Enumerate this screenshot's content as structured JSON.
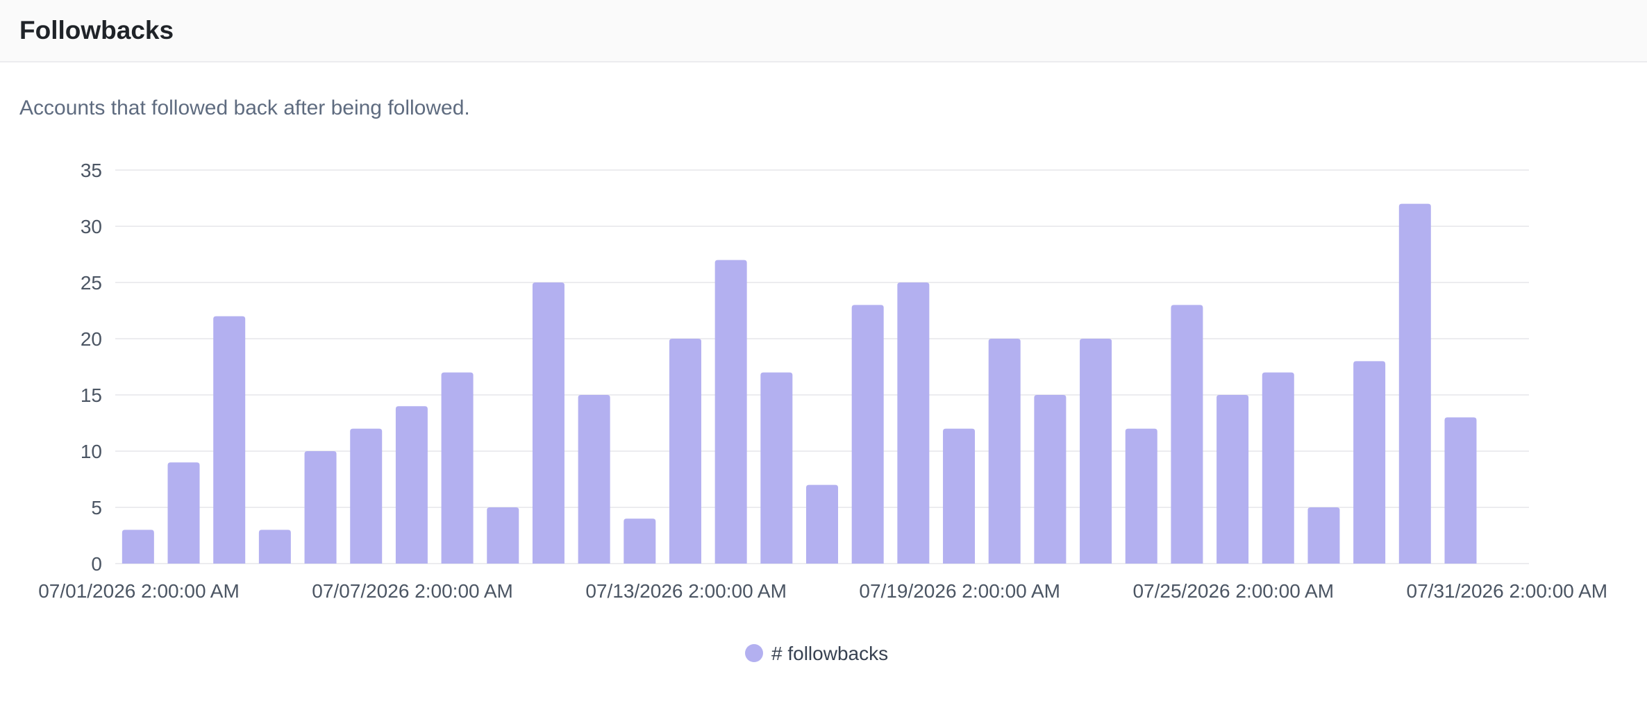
{
  "card": {
    "title": "Followbacks",
    "description": "Accounts that followed back after being followed."
  },
  "chart_data": {
    "type": "bar",
    "categories": [
      "07/01/2026 2:00:00 AM",
      "07/02/2026 2:00:00 AM",
      "07/03/2026 2:00:00 AM",
      "07/04/2026 2:00:00 AM",
      "07/05/2026 2:00:00 AM",
      "07/06/2026 2:00:00 AM",
      "07/07/2026 2:00:00 AM",
      "07/08/2026 2:00:00 AM",
      "07/09/2026 2:00:00 AM",
      "07/10/2026 2:00:00 AM",
      "07/11/2026 2:00:00 AM",
      "07/12/2026 2:00:00 AM",
      "07/13/2026 2:00:00 AM",
      "07/14/2026 2:00:00 AM",
      "07/15/2026 2:00:00 AM",
      "07/16/2026 2:00:00 AM",
      "07/17/2026 2:00:00 AM",
      "07/18/2026 2:00:00 AM",
      "07/19/2026 2:00:00 AM",
      "07/20/2026 2:00:00 AM",
      "07/21/2026 2:00:00 AM",
      "07/22/2026 2:00:00 AM",
      "07/23/2026 2:00:00 AM",
      "07/24/2026 2:00:00 AM",
      "07/25/2026 2:00:00 AM",
      "07/26/2026 2:00:00 AM",
      "07/27/2026 2:00:00 AM",
      "07/28/2026 2:00:00 AM",
      "07/29/2026 2:00:00 AM",
      "07/30/2026 2:00:00 AM",
      "07/31/2026 2:00:00 AM"
    ],
    "series": [
      {
        "name": "# followbacks",
        "color": "#b3b0f0",
        "values": [
          3,
          9,
          22,
          3,
          10,
          12,
          14,
          17,
          5,
          25,
          15,
          4,
          20,
          27,
          17,
          7,
          23,
          25,
          12,
          20,
          15,
          20,
          12,
          23,
          15,
          17,
          5,
          18,
          32,
          13,
          null
        ]
      }
    ],
    "x_tick_labels": [
      "07/01/2026 2:00:00 AM",
      "07/07/2026 2:00:00 AM",
      "07/13/2026 2:00:00 AM",
      "07/19/2026 2:00:00 AM",
      "07/25/2026 2:00:00 AM",
      "07/31/2026 2:00:00 AM"
    ],
    "y_ticks": [
      0,
      5,
      10,
      15,
      20,
      25,
      30,
      35
    ],
    "ylim": [
      0,
      35
    ],
    "grid": true,
    "legend_position": "bottom-center",
    "gridline_color": "#ececef",
    "axis_label_color": "#4b5563"
  }
}
